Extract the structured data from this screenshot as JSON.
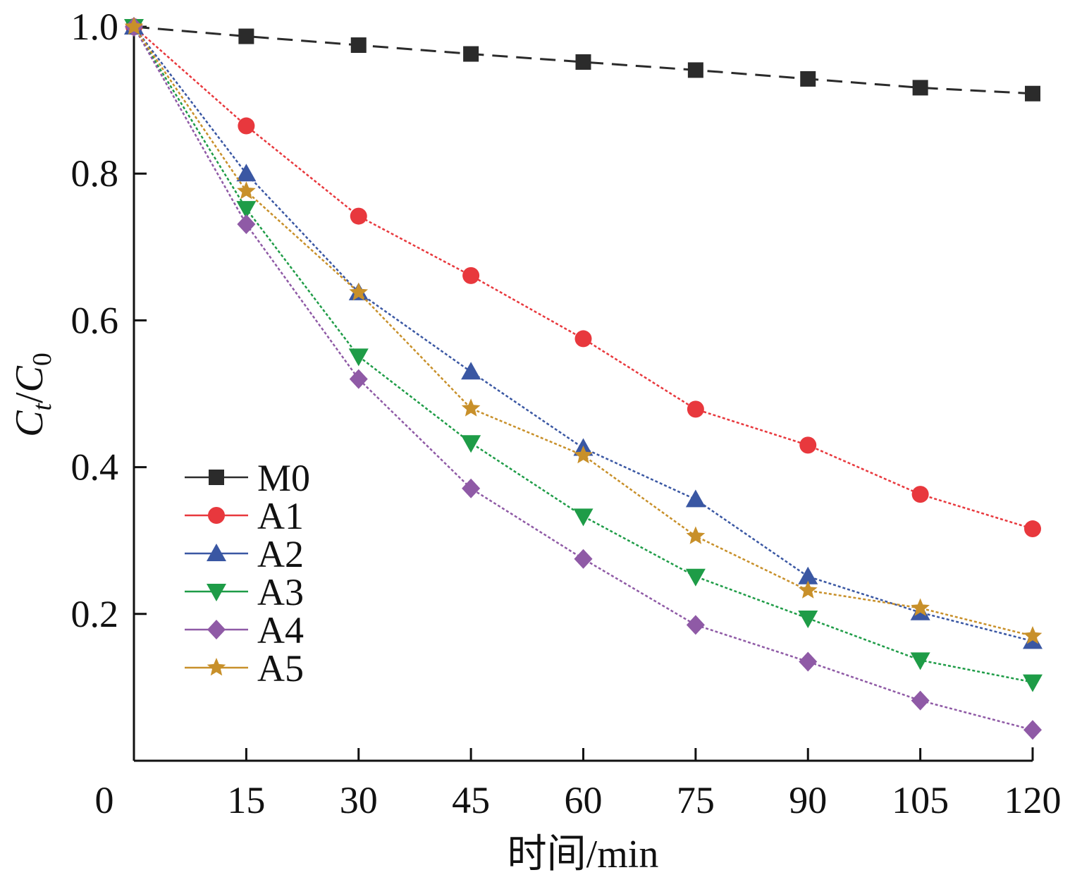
{
  "chart_data": {
    "type": "line",
    "x": [
      0,
      15,
      30,
      45,
      60,
      75,
      90,
      105,
      120
    ],
    "series": [
      {
        "name": "M0",
        "marker": "square",
        "color": "#2b2b2b",
        "dash": "dashed",
        "values": [
          1.0,
          0.987,
          0.975,
          0.963,
          0.952,
          0.941,
          0.929,
          0.917,
          0.909
        ]
      },
      {
        "name": "A1",
        "marker": "circle",
        "color": "#e8383d",
        "dash": "dotted",
        "values": [
          1.0,
          0.865,
          0.742,
          0.661,
          0.575,
          0.479,
          0.43,
          0.363,
          0.316
        ]
      },
      {
        "name": "A2",
        "marker": "triangle-up",
        "color": "#3a57a3",
        "dash": "dotted",
        "values": [
          1.0,
          0.8,
          0.638,
          0.53,
          0.426,
          0.356,
          0.251,
          0.202,
          0.163
        ]
      },
      {
        "name": "A3",
        "marker": "triangle-down",
        "color": "#1e9c47",
        "dash": "dotted",
        "values": [
          1.0,
          0.752,
          0.551,
          0.433,
          0.333,
          0.251,
          0.194,
          0.137,
          0.107
        ]
      },
      {
        "name": "A4",
        "marker": "diamond",
        "color": "#8f5aa6",
        "dash": "dotted",
        "values": [
          1.0,
          0.731,
          0.52,
          0.371,
          0.275,
          0.185,
          0.135,
          0.082,
          0.042
        ]
      },
      {
        "name": "A5",
        "marker": "star",
        "color": "#c8902a",
        "dash": "dotted",
        "values": [
          1.0,
          0.776,
          0.638,
          0.48,
          0.416,
          0.306,
          0.232,
          0.208,
          0.17
        ]
      }
    ],
    "xlabel": "时间/min",
    "ylabel_main": "C",
    "ylabel_sub_num": "t",
    "ylabel_sep": "/",
    "ylabel_sub_den": "0",
    "xlim": [
      0,
      120
    ],
    "ylim": [
      0,
      1.0
    ],
    "xticks": [
      0,
      15,
      30,
      45,
      60,
      75,
      90,
      105,
      120
    ],
    "xtick_labels": [
      "0",
      "15",
      "30",
      "45",
      "60",
      "75",
      "90",
      "105",
      "120"
    ],
    "yticks": [
      0.2,
      0.4,
      0.6,
      0.8,
      1.0
    ],
    "ytick_labels": [
      "0.2",
      "0.4",
      "0.6",
      "0.8",
      "1.0"
    ],
    "grid": false,
    "legend_position": "lower-left"
  }
}
